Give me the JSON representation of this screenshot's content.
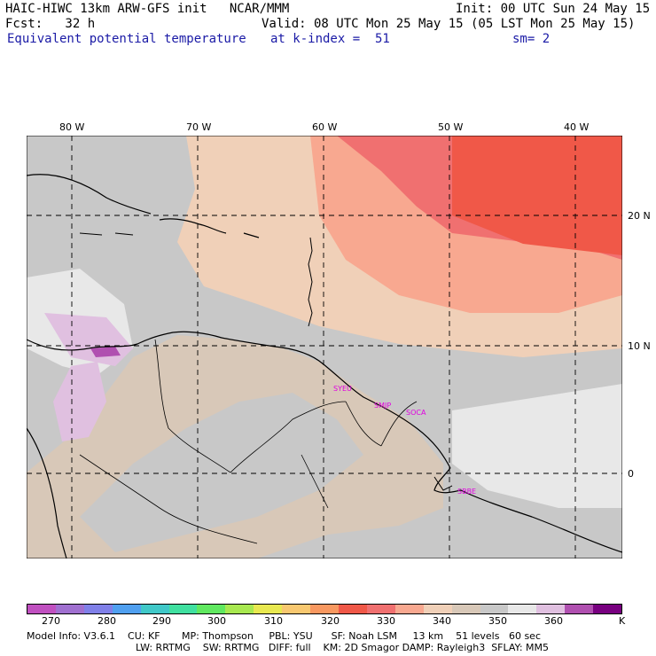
{
  "header": {
    "title": "HAIC-HIWC 13km ARW-GFS init   NCAR/MMM",
    "init": "Init: 00 UTC Sun 24 May 15",
    "fcst": "Fcst:   32 h",
    "valid": "Valid: 08 UTC Mon 25 May 15 (05 LST Mon 25 May 15)",
    "field": "Equivalent potential temperature",
    "level": "at k-index =  51",
    "smooth": "sm= 2"
  },
  "axes": {
    "lon_labels": [
      "80 W",
      "70 W",
      "60 W",
      "50 W",
      "40 W"
    ],
    "lat_labels": [
      "20 N",
      "10 N",
      "0"
    ]
  },
  "stations": [
    "SYEU",
    "SMJP",
    "SOCA",
    "SBBE"
  ],
  "colorbar": {
    "colors": [
      "#c050c0",
      "#a070d0",
      "#8080e8",
      "#50a0f0",
      "#40c8c8",
      "#40e0a0",
      "#60e860",
      "#a8e850",
      "#e8e850",
      "#f8c870",
      "#f89860",
      "#f05848",
      "#f07070",
      "#f8a890",
      "#f0d0b8",
      "#d8c8b8",
      "#c8c8c8",
      "#e8e8e8",
      "#e0c0e0",
      "#b050b0",
      "#780080"
    ],
    "labels": [
      "270",
      "280",
      "290",
      "300",
      "310",
      "320",
      "330",
      "340",
      "350",
      "360",
      "K"
    ]
  },
  "footer": {
    "line1": "Model Info: V3.6.1    CU: KF       MP: Thompson     PBL: YSU      SF: Noah LSM     13 km    51 levels   60 sec",
    "line2": "LW: RRTMG    SW: RRTMG   DIFF: full    KM: 2D Smagor DAMP: Rayleigh3  SFLAY: MM5"
  },
  "colors": {
    "field_text": "#1a1aa6",
    "station_label": "#e000e0"
  }
}
